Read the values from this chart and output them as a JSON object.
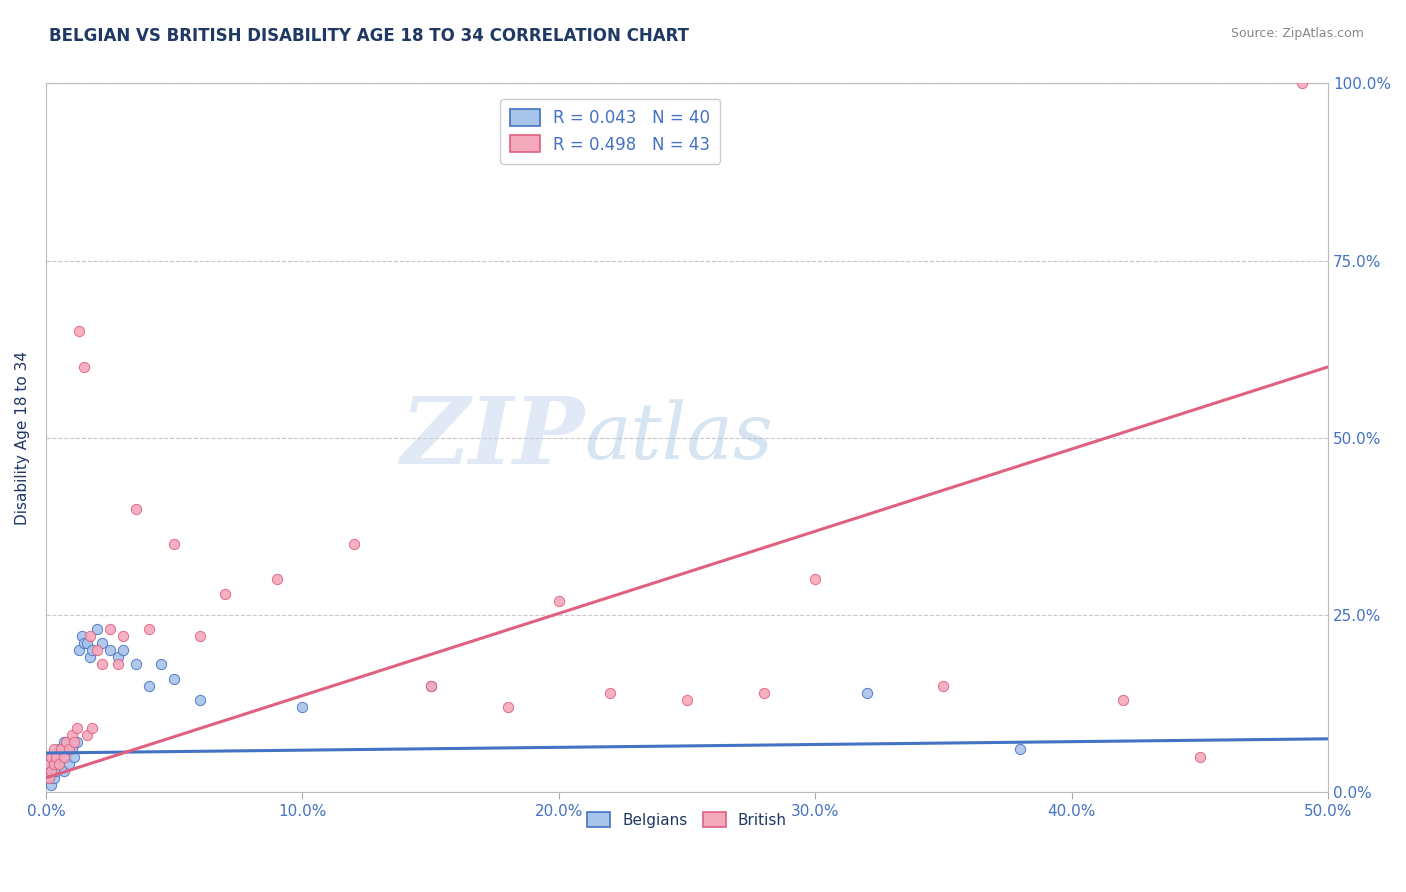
{
  "title": "BELGIAN VS BRITISH DISABILITY AGE 18 TO 34 CORRELATION CHART",
  "source": "Source: ZipAtlas.com",
  "ylabel": "Disability Age 18 to 34",
  "xlim": [
    0.0,
    0.5
  ],
  "ylim": [
    0.0,
    1.0
  ],
  "xtick_labels": [
    "0.0%",
    "10.0%",
    "20.0%",
    "30.0%",
    "40.0%",
    "50.0%"
  ],
  "xtick_values": [
    0.0,
    0.1,
    0.2,
    0.3,
    0.4,
    0.5
  ],
  "ytick_labels": [
    "0.0%",
    "25.0%",
    "50.0%",
    "75.0%",
    "100.0%"
  ],
  "ytick_values": [
    0.0,
    0.25,
    0.5,
    0.75,
    1.0
  ],
  "belgian_R": 0.043,
  "belgian_N": 40,
  "british_R": 0.498,
  "british_N": 43,
  "belgian_color": "#a8c4e8",
  "british_color": "#f4a8bc",
  "belgian_line_color": "#4472c4",
  "british_line_color": "#e06080",
  "title_color": "#1f3864",
  "axis_label_color": "#1f3864",
  "tick_color": "#4472c4",
  "watermark_zip": "ZIP",
  "watermark_atlas": "atlas",
  "belgians_x": [
    0.001,
    0.001,
    0.001,
    0.002,
    0.002,
    0.002,
    0.003,
    0.003,
    0.004,
    0.004,
    0.005,
    0.005,
    0.006,
    0.007,
    0.007,
    0.008,
    0.009,
    0.01,
    0.011,
    0.012,
    0.013,
    0.014,
    0.015,
    0.016,
    0.017,
    0.018,
    0.02,
    0.022,
    0.025,
    0.028,
    0.03,
    0.035,
    0.04,
    0.045,
    0.05,
    0.06,
    0.1,
    0.15,
    0.32,
    0.38
  ],
  "belgians_y": [
    0.02,
    0.03,
    0.04,
    0.01,
    0.03,
    0.05,
    0.02,
    0.04,
    0.03,
    0.05,
    0.04,
    0.06,
    0.05,
    0.03,
    0.07,
    0.05,
    0.04,
    0.06,
    0.05,
    0.07,
    0.2,
    0.22,
    0.21,
    0.21,
    0.19,
    0.2,
    0.23,
    0.21,
    0.2,
    0.19,
    0.2,
    0.18,
    0.15,
    0.18,
    0.16,
    0.13,
    0.12,
    0.15,
    0.14,
    0.06
  ],
  "british_x": [
    0.001,
    0.001,
    0.002,
    0.002,
    0.003,
    0.003,
    0.004,
    0.005,
    0.006,
    0.007,
    0.008,
    0.009,
    0.01,
    0.011,
    0.012,
    0.013,
    0.015,
    0.016,
    0.017,
    0.018,
    0.02,
    0.022,
    0.025,
    0.028,
    0.03,
    0.035,
    0.04,
    0.05,
    0.06,
    0.07,
    0.09,
    0.12,
    0.15,
    0.18,
    0.2,
    0.22,
    0.25,
    0.28,
    0.3,
    0.35,
    0.42,
    0.45,
    0.49
  ],
  "british_y": [
    0.02,
    0.04,
    0.03,
    0.05,
    0.04,
    0.06,
    0.05,
    0.04,
    0.06,
    0.05,
    0.07,
    0.06,
    0.08,
    0.07,
    0.09,
    0.65,
    0.6,
    0.08,
    0.22,
    0.09,
    0.2,
    0.18,
    0.23,
    0.18,
    0.22,
    0.4,
    0.23,
    0.35,
    0.22,
    0.28,
    0.3,
    0.35,
    0.15,
    0.12,
    0.27,
    0.14,
    0.13,
    0.14,
    0.3,
    0.15,
    0.13,
    0.05,
    1.0
  ],
  "belgian_line_x": [
    0.0,
    0.5
  ],
  "belgian_line_y": [
    0.055,
    0.075
  ],
  "british_line_x": [
    0.0,
    0.5
  ],
  "british_line_y": [
    0.02,
    0.6
  ]
}
